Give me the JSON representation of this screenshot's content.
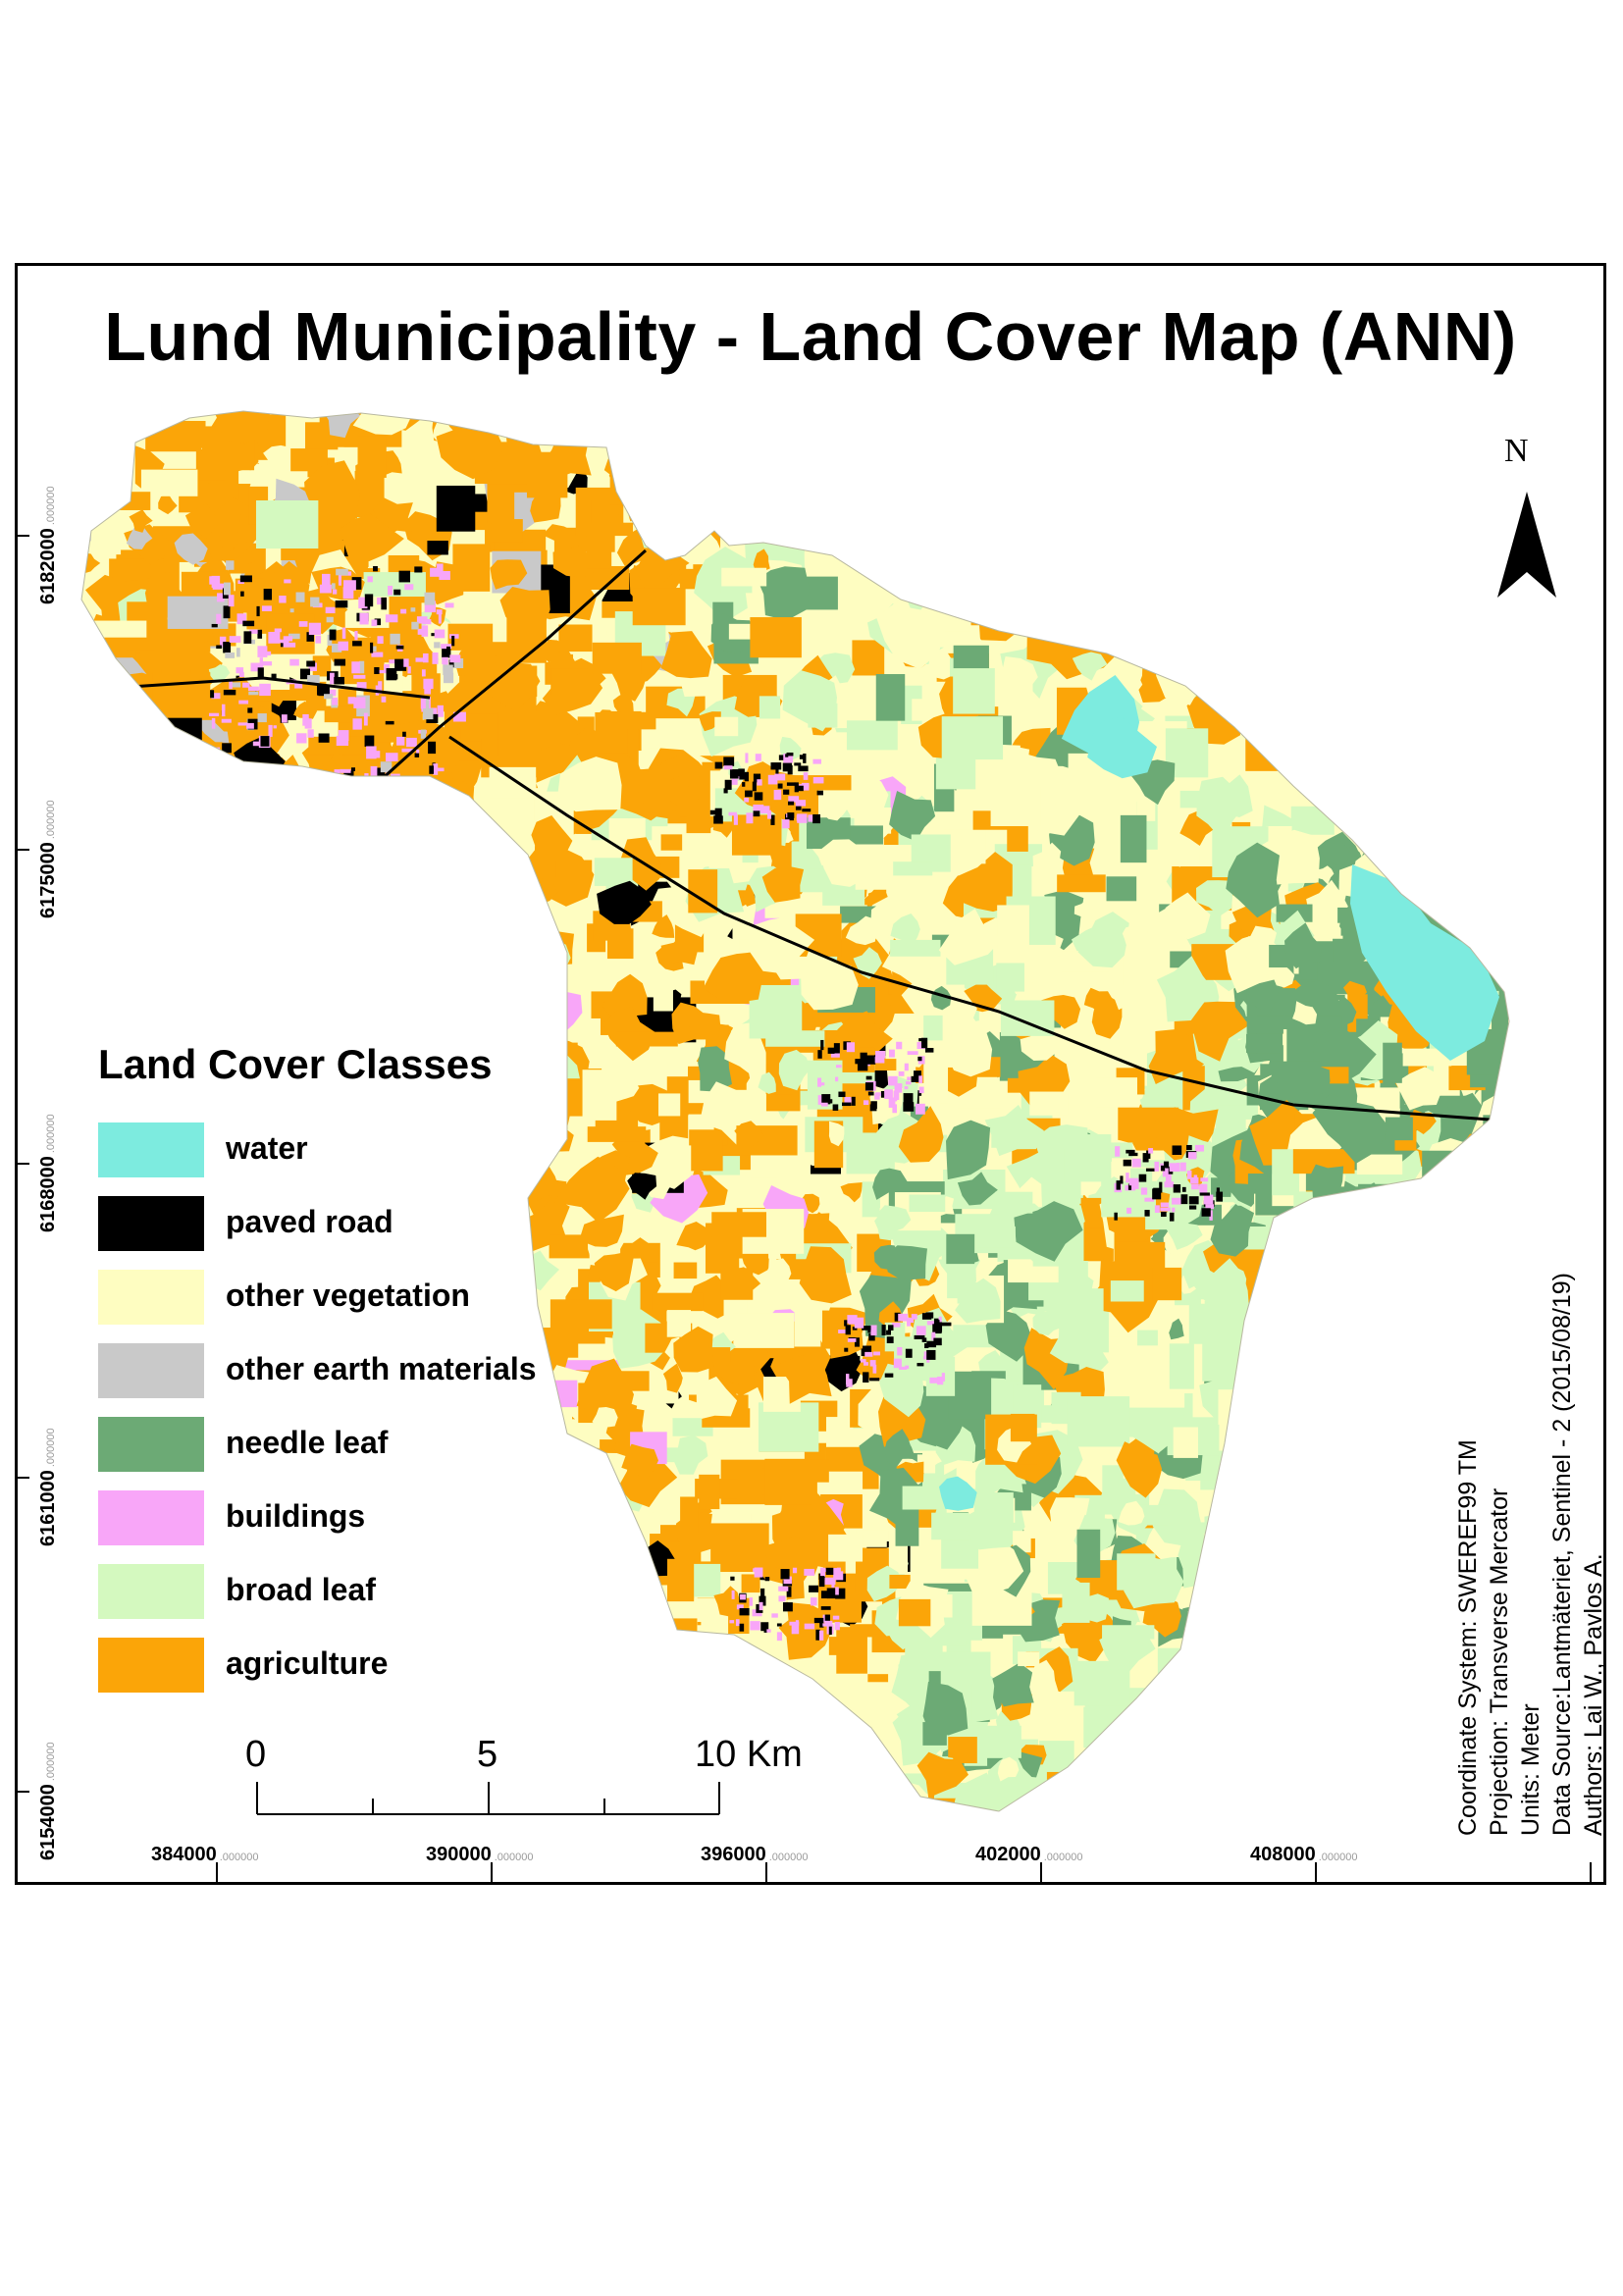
{
  "title": "Lund Municipality - Land Cover Map (ANN)",
  "legend": {
    "title": "Land Cover Classes",
    "items": [
      {
        "label": "water",
        "color": "#7DEBDF",
        "icon": "water-swatch"
      },
      {
        "label": "paved road",
        "color": "#000000",
        "icon": "paved-road-swatch"
      },
      {
        "label": "other vegetation",
        "color": "#FEFDC1",
        "icon": "other-vegetation-swatch"
      },
      {
        "label": "other earth materials",
        "color": "#C9C9C9",
        "icon": "other-earth-materials-swatch"
      },
      {
        "label": "needle leaf",
        "color": "#6CAA75",
        "icon": "needle-leaf-swatch"
      },
      {
        "label": "buildings",
        "color": "#F8A6F8",
        "icon": "buildings-swatch"
      },
      {
        "label": "broad leaf",
        "color": "#D4F9BF",
        "icon": "broad-leaf-swatch"
      },
      {
        "label": "agriculture",
        "color": "#FBA508",
        "icon": "agriculture-swatch"
      }
    ]
  },
  "north_arrow": {
    "letter": "N",
    "icon": "north-arrow-icon"
  },
  "scale_bar": {
    "labels": [
      "0",
      "5",
      "10 Km"
    ]
  },
  "x_axis": {
    "ticks": [
      {
        "value": "384000",
        "suffix": ".000000"
      },
      {
        "value": "390000",
        "suffix": ".000000"
      },
      {
        "value": "396000",
        "suffix": ".000000"
      },
      {
        "value": "402000",
        "suffix": ".000000"
      },
      {
        "value": "408000",
        "suffix": ".000000"
      }
    ]
  },
  "y_axis": {
    "ticks": [
      {
        "value": "6182000",
        "suffix": ".000000"
      },
      {
        "value": "6175000",
        "suffix": ".000000"
      },
      {
        "value": "6168000",
        "suffix": ".000000"
      },
      {
        "value": "6161000",
        "suffix": ".000000"
      },
      {
        "value": "6154000",
        "suffix": ".000000"
      }
    ]
  },
  "metadata": {
    "lines": [
      "Coordinate System: SWEREF99 TM",
      "Projection: Transverse Mercator",
      "Units: Meter",
      "Data Source:Lantmäteriet, Sentinel - 2 (2015/08/19)",
      "Authors: Lai W., Pavlos A."
    ]
  }
}
